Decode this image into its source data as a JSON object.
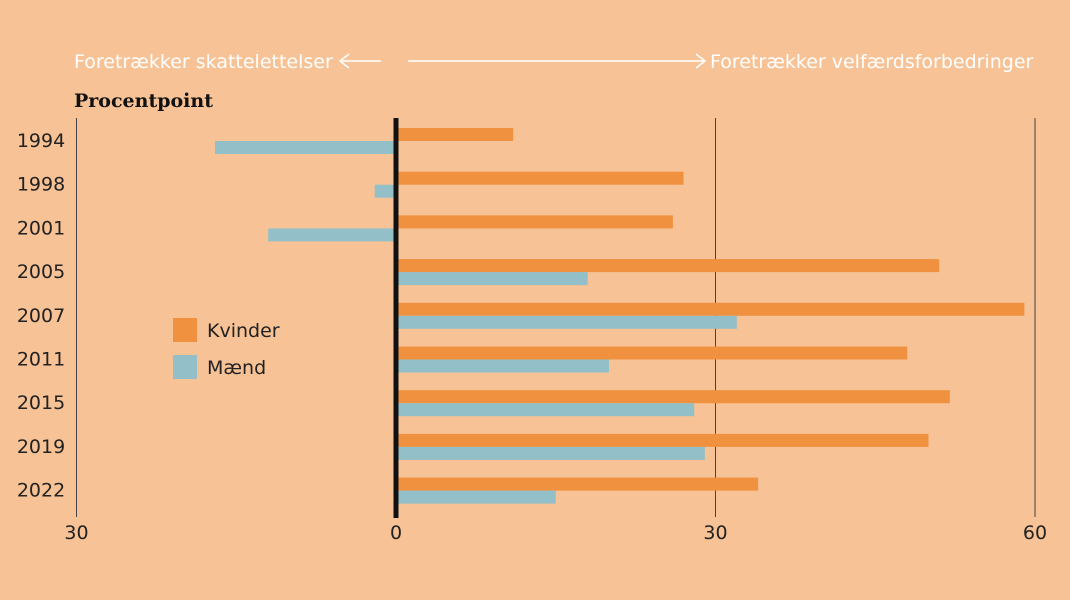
{
  "colors": {
    "background": "#f7c295",
    "kvinder": "#ef913e",
    "maend": "#93bfc9",
    "arrow": "#ffffff",
    "zero_line": "#111111",
    "grid": "#444444"
  },
  "direction_labels": {
    "left": "Foretrækker skattelettelser",
    "right": "Foretrækker velfærdsforbedringer"
  },
  "chart_data": {
    "type": "bar",
    "orientation": "horizontal",
    "unit_label": "Procentpoint",
    "categories": [
      "1994",
      "1998",
      "2001",
      "2005",
      "2007",
      "2011",
      "2015",
      "2019",
      "2022"
    ],
    "series": [
      {
        "name": "Kvinder",
        "color": "#ef913e",
        "values": [
          11,
          27,
          26,
          51,
          59,
          48,
          52,
          50,
          34
        ]
      },
      {
        "name": "Mænd",
        "color": "#93bfc9",
        "values": [
          -17,
          -2,
          -12,
          18,
          32,
          20,
          28,
          29,
          15
        ]
      }
    ],
    "xlim": [
      -30,
      60
    ],
    "x_ticks": [
      -30,
      0,
      30,
      60
    ],
    "x_tick_labels": [
      "30",
      "0",
      "30",
      "60"
    ],
    "grid": true,
    "legend_position": "left-middle"
  }
}
